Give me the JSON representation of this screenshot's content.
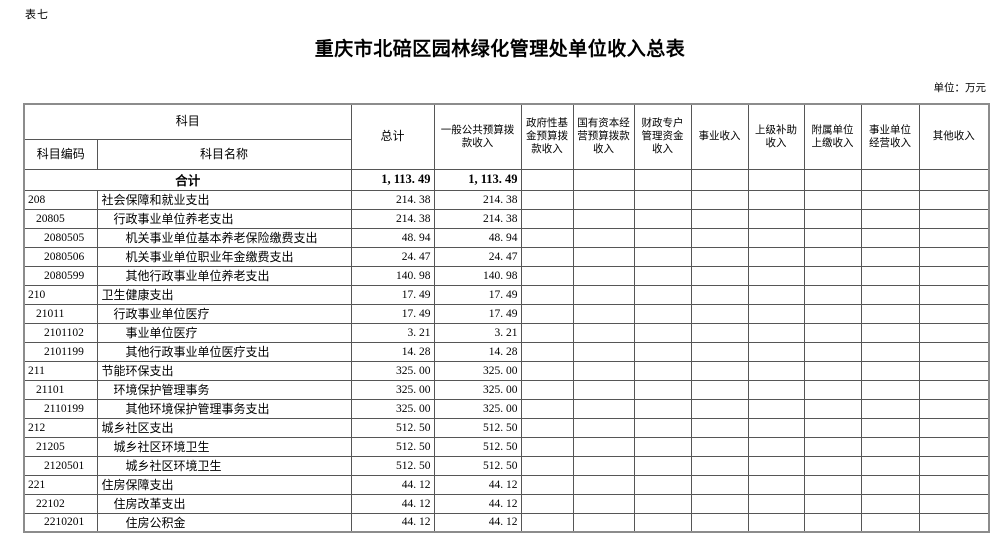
{
  "meta": {
    "sheet_label": "表七",
    "title": "重庆市北碚区园林绿化管理处单位收入总表",
    "unit_note": "单位：万元"
  },
  "table": {
    "header": {
      "subject_group": "科目",
      "subject_code": "科目编码",
      "subject_name": "科目名称",
      "columns": [
        "总计",
        "一般公共预算拨款收入",
        "政府性基金预算拨款收入",
        "国有资本经营预算拨款收入",
        "财政专户管理资金收入",
        "事业收入",
        "上级补助收入",
        "附属单位上缴收入",
        "事业单位经营收入",
        "其他收入"
      ]
    },
    "total_row": {
      "label": "合计",
      "total": "1, 113. 49",
      "general_budget": "1, 113. 49"
    },
    "rows": [
      {
        "code": "208",
        "name": "社会保障和就业支出",
        "level": 1,
        "total": "214. 38",
        "general_budget": "214. 38"
      },
      {
        "code": "20805",
        "name": "行政事业单位养老支出",
        "level": 2,
        "total": "214. 38",
        "general_budget": "214. 38"
      },
      {
        "code": "2080505",
        "name": "机关事业单位基本养老保险缴费支出",
        "level": 3,
        "total": "48. 94",
        "general_budget": "48. 94"
      },
      {
        "code": "2080506",
        "name": "机关事业单位职业年金缴费支出",
        "level": 3,
        "total": "24. 47",
        "general_budget": "24. 47"
      },
      {
        "code": "2080599",
        "name": "其他行政事业单位养老支出",
        "level": 3,
        "total": "140. 98",
        "general_budget": "140. 98"
      },
      {
        "code": "210",
        "name": "卫生健康支出",
        "level": 1,
        "total": "17. 49",
        "general_budget": "17. 49"
      },
      {
        "code": "21011",
        "name": "行政事业单位医疗",
        "level": 2,
        "total": "17. 49",
        "general_budget": "17. 49"
      },
      {
        "code": "2101102",
        "name": "事业单位医疗",
        "level": 3,
        "total": "3. 21",
        "general_budget": "3. 21"
      },
      {
        "code": "2101199",
        "name": "其他行政事业单位医疗支出",
        "level": 3,
        "total": "14. 28",
        "general_budget": "14. 28"
      },
      {
        "code": "211",
        "name": "节能环保支出",
        "level": 1,
        "total": "325. 00",
        "general_budget": "325. 00"
      },
      {
        "code": "21101",
        "name": "环境保护管理事务",
        "level": 2,
        "total": "325. 00",
        "general_budget": "325. 00"
      },
      {
        "code": "2110199",
        "name": "其他环境保护管理事务支出",
        "level": 3,
        "total": "325. 00",
        "general_budget": "325. 00"
      },
      {
        "code": "212",
        "name": "城乡社区支出",
        "level": 1,
        "total": "512. 50",
        "general_budget": "512. 50"
      },
      {
        "code": "21205",
        "name": "城乡社区环境卫生",
        "level": 2,
        "total": "512. 50",
        "general_budget": "512. 50"
      },
      {
        "code": "2120501",
        "name": "城乡社区环境卫生",
        "level": 3,
        "total": "512. 50",
        "general_budget": "512. 50"
      },
      {
        "code": "221",
        "name": "住房保障支出",
        "level": 1,
        "total": "44. 12",
        "general_budget": "44. 12"
      },
      {
        "code": "22102",
        "name": "住房改革支出",
        "level": 2,
        "total": "44. 12",
        "general_budget": "44. 12"
      },
      {
        "code": "2210201",
        "name": "住房公积金",
        "level": 3,
        "total": "44. 12",
        "general_budget": "44. 12"
      }
    ]
  }
}
